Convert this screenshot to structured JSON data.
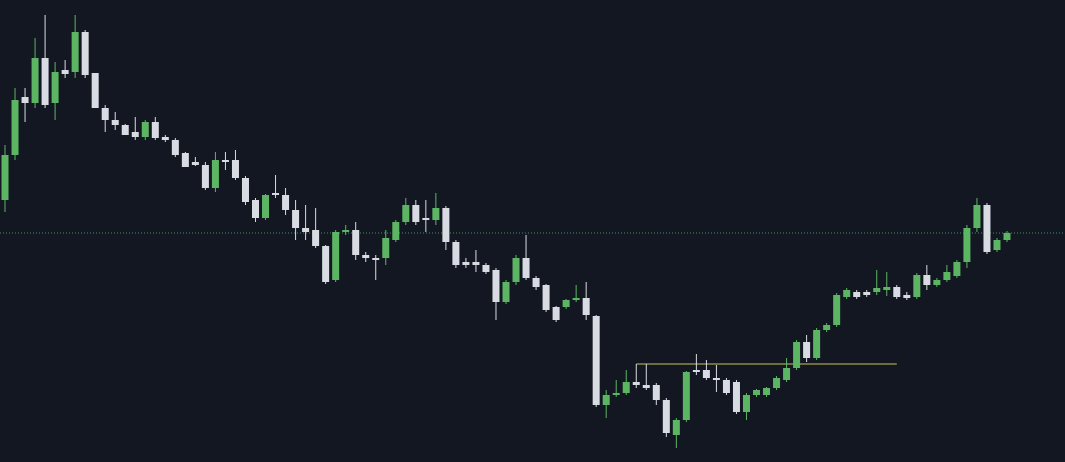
{
  "chart_data": {
    "type": "candlestick",
    "up_color": "#5cb563",
    "down_color": "#d9dbe3",
    "background": "#131722",
    "ylim": [
      0,
      462
    ],
    "open": [
      262,
      307,
      365,
      359,
      404,
      359,
      392,
      390,
      430,
      389,
      354,
      342,
      337,
      330,
      325,
      340,
      325,
      322,
      309,
      300,
      297,
      274,
      302,
      302,
      284,
      262,
      244,
      269,
      267,
      252,
      234,
      232,
      216,
      182,
      230,
      232,
      207,
      204,
      204,
      222,
      240,
      257,
      244,
      242,
      254,
      220,
      200,
      200,
      197,
      192,
      160,
      180,
      204,
      184,
      177,
      155,
      155,
      162,
      164,
      146,
      57,
      67,
      69,
      80,
      77,
      77,
      62,
      27,
      42,
      92,
      92,
      84,
      82,
      80,
      50,
      67,
      67,
      74,
      82,
      94,
      120,
      104,
      132,
      137,
      165,
      170,
      170,
      170,
      172,
      175,
      167,
      165,
      187,
      177,
      182,
      186,
      200,
      234,
      257,
      212,
      222
    ],
    "high": [
      317,
      374,
      374,
      424,
      447,
      400,
      402,
      447,
      432,
      389,
      357,
      350,
      338,
      345,
      342,
      345,
      327,
      324,
      310,
      305,
      300,
      310,
      310,
      312,
      286,
      264,
      268,
      287,
      274,
      262,
      257,
      254,
      217,
      232,
      237,
      240,
      210,
      207,
      232,
      242,
      264,
      262,
      262,
      269,
      256,
      222,
      204,
      212,
      199,
      194,
      182,
      207,
      227,
      186,
      178,
      156,
      163,
      177,
      180,
      147,
      72,
      82,
      92,
      98,
      98,
      79,
      64,
      44,
      91,
      108,
      102,
      97,
      84,
      82,
      69,
      73,
      75,
      86,
      104,
      122,
      127,
      134,
      139,
      169,
      174,
      172,
      172,
      192,
      190,
      177,
      170,
      189,
      197,
      184,
      197,
      202,
      237,
      264,
      259,
      224,
      231
    ],
    "low": [
      250,
      302,
      340,
      354,
      354,
      342,
      384,
      384,
      384,
      354,
      330,
      332,
      327,
      322,
      322,
      322,
      320,
      305,
      295,
      296,
      272,
      270,
      292,
      282,
      257,
      240,
      242,
      264,
      247,
      222,
      222,
      214,
      178,
      180,
      227,
      202,
      200,
      182,
      197,
      220,
      237,
      237,
      230,
      237,
      212,
      194,
      194,
      190,
      188,
      142,
      158,
      177,
      182,
      172,
      150,
      140,
      153,
      160,
      142,
      55,
      44,
      65,
      67,
      74,
      72,
      57,
      25,
      14,
      40,
      87,
      82,
      70,
      67,
      48,
      42,
      65,
      65,
      72,
      80,
      92,
      100,
      102,
      130,
      135,
      163,
      163,
      165,
      167,
      166,
      163,
      162,
      163,
      172,
      175,
      180,
      184,
      194,
      230,
      208,
      210,
      220
    ],
    "close": [
      307,
      362,
      359,
      404,
      357,
      390,
      388,
      430,
      387,
      354,
      342,
      337,
      327,
      325,
      340,
      324,
      322,
      307,
      295,
      297,
      274,
      302,
      300,
      284,
      260,
      244,
      267,
      267,
      252,
      234,
      230,
      216,
      180,
      230,
      232,
      207,
      204,
      202,
      224,
      240,
      257,
      240,
      242,
      254,
      220,
      197,
      197,
      197,
      190,
      160,
      180,
      204,
      184,
      175,
      152,
      142,
      162,
      164,
      147,
      57,
      67,
      69,
      80,
      77,
      74,
      62,
      29,
      42,
      90,
      90,
      84,
      82,
      69,
      50,
      67,
      72,
      74,
      84,
      94,
      120,
      104,
      132,
      137,
      167,
      172,
      165,
      167,
      174,
      175,
      165,
      164,
      187,
      177,
      182,
      190,
      200,
      234,
      257,
      210,
      222,
      229
    ],
    "reference_lines": [
      {
        "value": 229,
        "color": "#3f8f5c",
        "style": "dotted"
      },
      {
        "value": 98,
        "color": "#c8c35a",
        "style": "solid",
        "x_range": [
          63,
          89
        ]
      }
    ]
  }
}
